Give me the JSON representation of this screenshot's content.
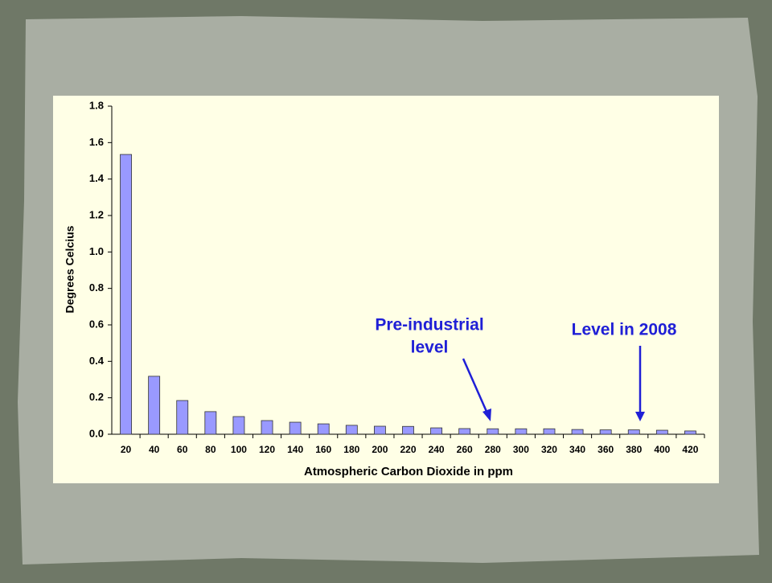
{
  "chart_data": {
    "type": "bar",
    "y_label": "Degrees Celcius",
    "x_label": "Atmospheric Carbon Dioxide in ppm",
    "categories": [
      "20",
      "40",
      "60",
      "80",
      "100",
      "120",
      "140",
      "160",
      "180",
      "200",
      "220",
      "240",
      "260",
      "280",
      "300",
      "320",
      "340",
      "360",
      "380",
      "400",
      "420"
    ],
    "values": [
      1.535,
      0.318,
      0.185,
      0.124,
      0.097,
      0.075,
      0.066,
      0.057,
      0.049,
      0.044,
      0.043,
      0.035,
      0.031,
      0.03,
      0.03,
      0.03,
      0.026,
      0.024,
      0.024,
      0.022,
      0.018
    ],
    "color": "#9999ff",
    "ylim": [
      0,
      1.8
    ],
    "yticks": [
      {
        "value": 0,
        "label": "0.0"
      },
      0.2,
      0.4,
      0.6,
      0.8,
      {
        "value": 1,
        "label": "1.0"
      },
      1.2,
      1.4,
      1.6,
      1.8
    ],
    "grid": false,
    "annotations": [
      {
        "lines": [
          "Pre-industrial",
          "level"
        ],
        "color": "#1f1fd6"
      },
      {
        "lines": [
          "Level in 2008"
        ],
        "color": "#1f1fd6"
      }
    ]
  }
}
